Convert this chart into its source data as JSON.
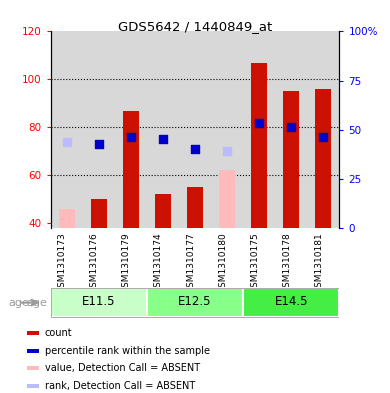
{
  "title": "GDS5642 / 1440849_at",
  "samples": [
    "GSM1310173",
    "GSM1310176",
    "GSM1310179",
    "GSM1310174",
    "GSM1310177",
    "GSM1310180",
    "GSM1310175",
    "GSM1310178",
    "GSM1310181"
  ],
  "group_labels": [
    "E11.5",
    "E12.5",
    "E14.5"
  ],
  "group_ranges": [
    [
      0,
      3
    ],
    [
      3,
      6
    ],
    [
      6,
      9
    ]
  ],
  "group_colors": [
    "#c8ffc8",
    "#88ff88",
    "#44ee44"
  ],
  "count_values": [
    null,
    50,
    87,
    52,
    55,
    null,
    107,
    95,
    96
  ],
  "count_absent": [
    46,
    null,
    null,
    null,
    null,
    62,
    null,
    null,
    null
  ],
  "rank_values_left": [
    null,
    73,
    76,
    75,
    71,
    null,
    82,
    80,
    76
  ],
  "rank_absent_left": [
    74,
    null,
    null,
    null,
    null,
    70,
    null,
    null,
    null
  ],
  "ylim_left": [
    38,
    120
  ],
  "ylim_right": [
    0,
    100
  ],
  "yticks_left": [
    40,
    60,
    80,
    100,
    120
  ],
  "yticks_right": [
    0,
    25,
    50,
    75,
    100
  ],
  "ytick_labels_right": [
    "0",
    "25",
    "50",
    "75",
    "100%"
  ],
  "bar_width": 0.5,
  "bar_color_present": "#cc1100",
  "bar_color_absent": "#ffbbbb",
  "dot_color_present": "#0000cc",
  "dot_color_absent": "#bbbbff",
  "dot_size": 40,
  "bg_col_color": "#d8d8d8",
  "bg_plot_color": "#e8e8e8",
  "legend_items": [
    {
      "label": "count",
      "color": "#cc1100"
    },
    {
      "label": "percentile rank within the sample",
      "color": "#0000cc"
    },
    {
      "label": "value, Detection Call = ABSENT",
      "color": "#ffbbbb"
    },
    {
      "label": "rank, Detection Call = ABSENT",
      "color": "#bbbbff"
    }
  ]
}
